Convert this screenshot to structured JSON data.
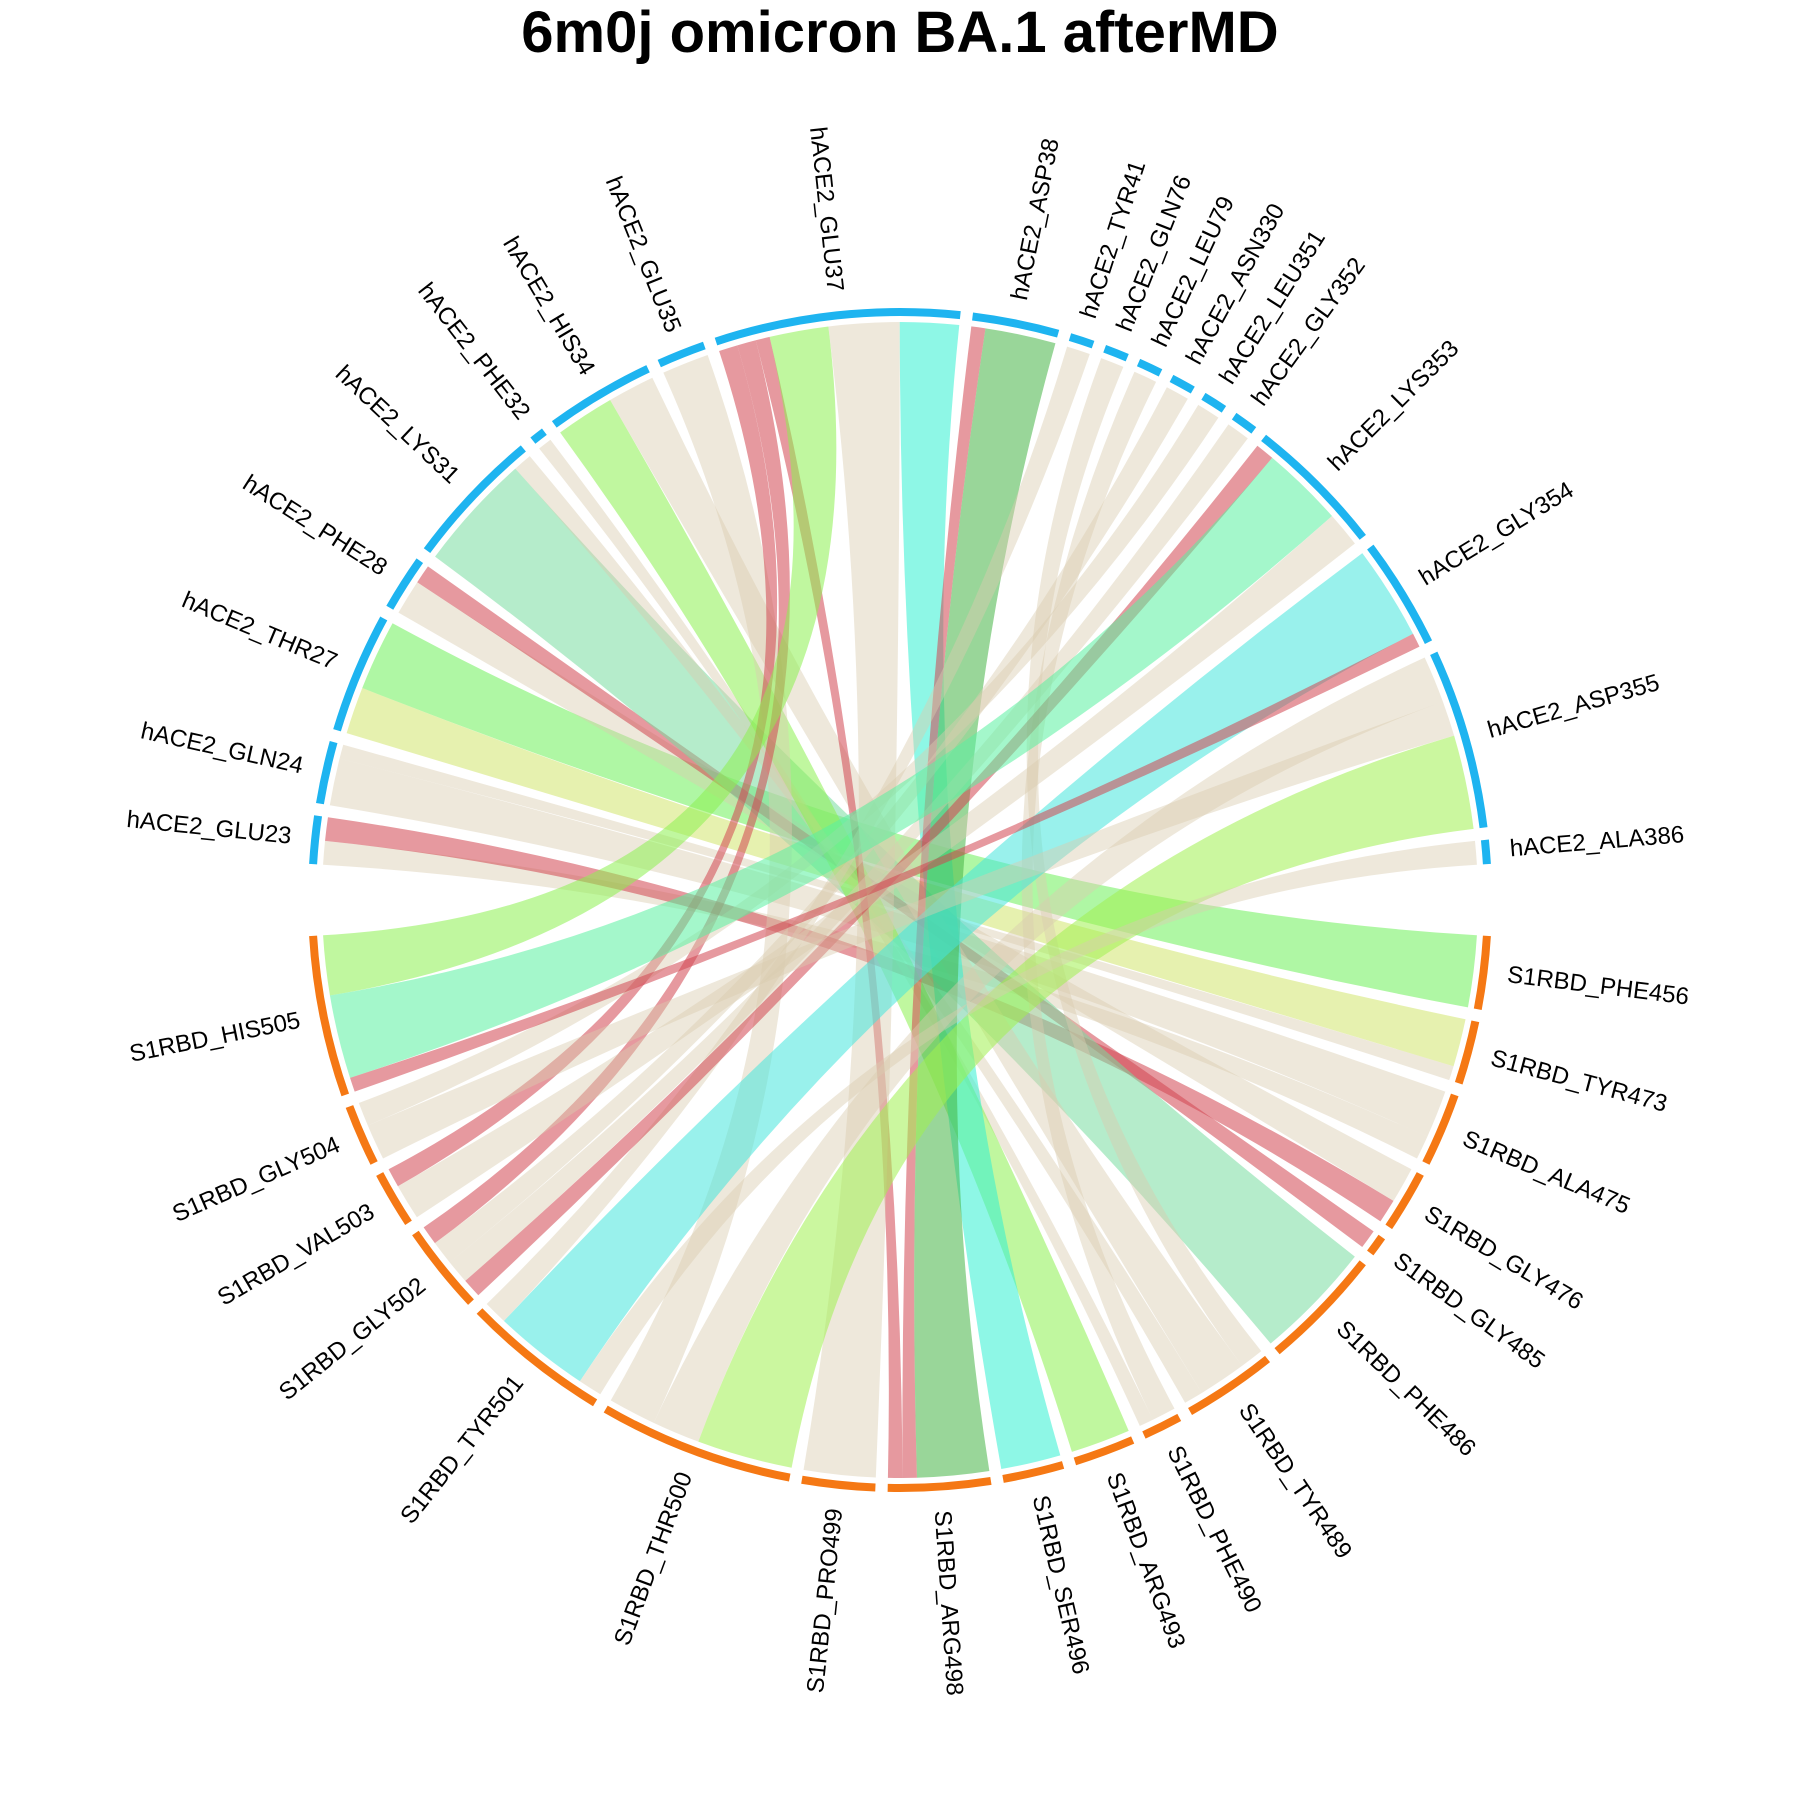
{
  "chart_data": {
    "type": "chord",
    "title": "6m0j omicron BA.1 afterMD",
    "groups": [
      {
        "name": "hACE2",
        "color": "#1EB4F0"
      },
      {
        "name": "S1RBD",
        "color": "#F57814"
      }
    ],
    "top_sectors": [
      "hACE2_GLU23",
      "hACE2_GLN24",
      "hACE2_THR27",
      "hACE2_PHE28",
      "hACE2_LYS31",
      "hACE2_PHE32",
      "hACE2_HIS34",
      "hACE2_GLU35",
      "hACE2_GLU37",
      "hACE2_ASP38",
      "hACE2_TYR41",
      "hACE2_GLN76",
      "hACE2_LEU79",
      "hACE2_ASN330",
      "hACE2_LEU351",
      "hACE2_GLY352",
      "hACE2_LYS353",
      "hACE2_GLY354",
      "hACE2_ASP355",
      "hACE2_ALA386"
    ],
    "bottom_sectors": [
      "S1RBD_PHE456",
      "S1RBD_TYR473",
      "S1RBD_ALA475",
      "S1RBD_GLY476",
      "S1RBD_GLY485",
      "S1RBD_PHE486",
      "S1RBD_TYR489",
      "S1RBD_PHE490",
      "S1RBD_ARG493",
      "S1RBD_SER496",
      "S1RBD_ARG498",
      "S1RBD_PRO499",
      "S1RBD_THR500",
      "S1RBD_TYR501",
      "S1RBD_GLY502",
      "S1RBD_VAL503",
      "S1RBD_GLY504",
      "S1RBD_HIS505"
    ],
    "links": [
      {
        "from": "hACE2_GLU23",
        "to": "S1RBD_ALA475",
        "value": 1,
        "color": "#D9CDB0"
      },
      {
        "from": "hACE2_GLU23",
        "to": "S1RBD_GLY476",
        "value": 1,
        "color": "#D24650"
      },
      {
        "from": "hACE2_GLN24",
        "to": "S1RBD_ALA475",
        "value": 2,
        "color": "#D9CDB0"
      },
      {
        "from": "hACE2_GLN24",
        "to": "S1RBD_TYR473",
        "value": 0.6,
        "color": "#D9CDB0"
      },
      {
        "from": "hACE2_THR27",
        "to": "S1RBD_TYR473",
        "value": 2,
        "color": "#D2E66E"
      },
      {
        "from": "hACE2_THR27",
        "to": "S1RBD_PHE456",
        "value": 3,
        "color": "#6EF05A"
      },
      {
        "from": "hACE2_PHE28",
        "to": "S1RBD_GLY476",
        "value": 1.5,
        "color": "#D9CDB0"
      },
      {
        "from": "hACE2_PHE28",
        "to": "S1RBD_GLY485",
        "value": 0.8,
        "color": "#D24650"
      },
      {
        "from": "hACE2_LYS31",
        "to": "S1RBD_PHE486",
        "value": 5,
        "color": "#78DCA0"
      },
      {
        "from": "hACE2_LYS31",
        "to": "S1RBD_TYR489",
        "value": 0.8,
        "color": "#D9CDB0"
      },
      {
        "from": "hACE2_PHE32",
        "to": "S1RBD_PHE490",
        "value": 0.6,
        "color": "#D9CDB0"
      },
      {
        "from": "hACE2_HIS34",
        "to": "S1RBD_ARG493",
        "value": 2.5,
        "color": "#8CF050"
      },
      {
        "from": "hACE2_HIS34",
        "to": "S1RBD_TYR489",
        "value": 2,
        "color": "#D9CDB0"
      },
      {
        "from": "hACE2_GLU35",
        "to": "S1RBD_THR500",
        "value": 2,
        "color": "#D9CDB0"
      },
      {
        "from": "hACE2_GLU37",
        "to": "S1RBD_VAL503",
        "value": 0.8,
        "color": "#D24650"
      },
      {
        "from": "hACE2_GLU37",
        "to": "S1RBD_GLY502",
        "value": 0.8,
        "color": "#D24650"
      },
      {
        "from": "hACE2_GLU37",
        "to": "S1RBD_ARG498",
        "value": 0.6,
        "color": "#D24650"
      },
      {
        "from": "hACE2_GLU37",
        "to": "S1RBD_HIS505",
        "value": 2.5,
        "color": "#8CF050"
      },
      {
        "from": "hACE2_GLU37",
        "to": "S1RBD_PRO499",
        "value": 3,
        "color": "#D9CDB0"
      },
      {
        "from": "hACE2_GLU37",
        "to": "S1RBD_SER496",
        "value": 2.5,
        "color": "#32F0D2"
      },
      {
        "from": "hACE2_ASP38",
        "to": "S1RBD_ARG498",
        "value": 0.6,
        "color": "#D24650"
      },
      {
        "from": "hACE2_ASP38",
        "to": "S1RBD_ARG498",
        "value": 3,
        "color": "#46B446"
      },
      {
        "from": "hACE2_TYR41",
        "to": "S1RBD_TYR501",
        "value": 1,
        "color": "#D9CDB0"
      },
      {
        "from": "hACE2_GLN76",
        "to": "S1RBD_TYR489",
        "value": 1,
        "color": "#D9CDB0"
      },
      {
        "from": "hACE2_LEU79",
        "to": "S1RBD_PHE490",
        "value": 1,
        "color": "#D9CDB0"
      },
      {
        "from": "hACE2_ASN330",
        "to": "S1RBD_GLY502",
        "value": 1,
        "color": "#D9CDB0"
      },
      {
        "from": "hACE2_LEU351",
        "to": "S1RBD_GLY504",
        "value": 1,
        "color": "#D9CDB0"
      },
      {
        "from": "hACE2_GLY352",
        "to": "S1RBD_GLY502",
        "value": 1,
        "color": "#D9CDB0"
      },
      {
        "from": "hACE2_LYS353",
        "to": "S1RBD_GLY502",
        "value": 0.8,
        "color": "#D24650"
      },
      {
        "from": "hACE2_LYS353",
        "to": "S1RBD_HIS505",
        "value": 3.5,
        "color": "#5AF0A0"
      },
      {
        "from": "hACE2_LYS353",
        "to": "S1RBD_VAL503",
        "value": 1.5,
        "color": "#D9CDB0"
      },
      {
        "from": "hACE2_GLY354",
        "to": "S1RBD_TYR501",
        "value": 4,
        "color": "#46E6DC"
      },
      {
        "from": "hACE2_GLY354",
        "to": "S1RBD_HIS505",
        "value": 0.6,
        "color": "#D24650"
      },
      {
        "from": "hACE2_ASP355",
        "to": "S1RBD_THR500",
        "value": 2,
        "color": "#D9CDB0"
      },
      {
        "from": "hACE2_ASP355",
        "to": "S1RBD_GLY504",
        "value": 1.5,
        "color": "#D9CDB0"
      },
      {
        "from": "hACE2_ASP355",
        "to": "S1RBD_THR500",
        "value": 4,
        "color": "#A0F050"
      },
      {
        "from": "hACE2_ALA386",
        "to": "S1RBD_TYR501",
        "value": 1,
        "color": "#D9CDB0"
      }
    ]
  }
}
